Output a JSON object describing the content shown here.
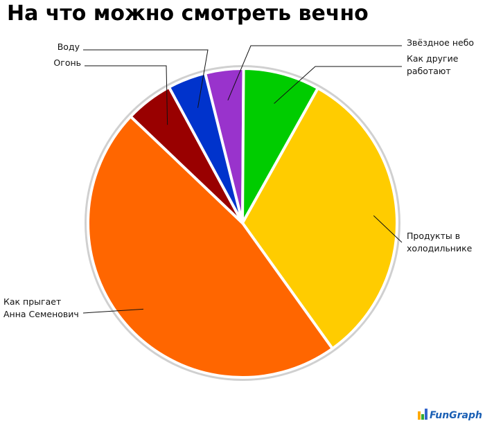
{
  "chart_data": {
    "type": "pie",
    "title": "На что можно смотреть вечно",
    "categories": [
      "Звёздное небо",
      "Как другие работают",
      "Продукты в холодильнике",
      "Как прыгает Анна Семенович",
      "Огонь",
      "Воду"
    ],
    "values": [
      4,
      8,
      32,
      47,
      5,
      4
    ],
    "colors": [
      "#9933cc",
      "#00cc00",
      "#ffcc00",
      "#ff6600",
      "#990000",
      "#0033cc"
    ],
    "watermark": "FunGraph"
  }
}
